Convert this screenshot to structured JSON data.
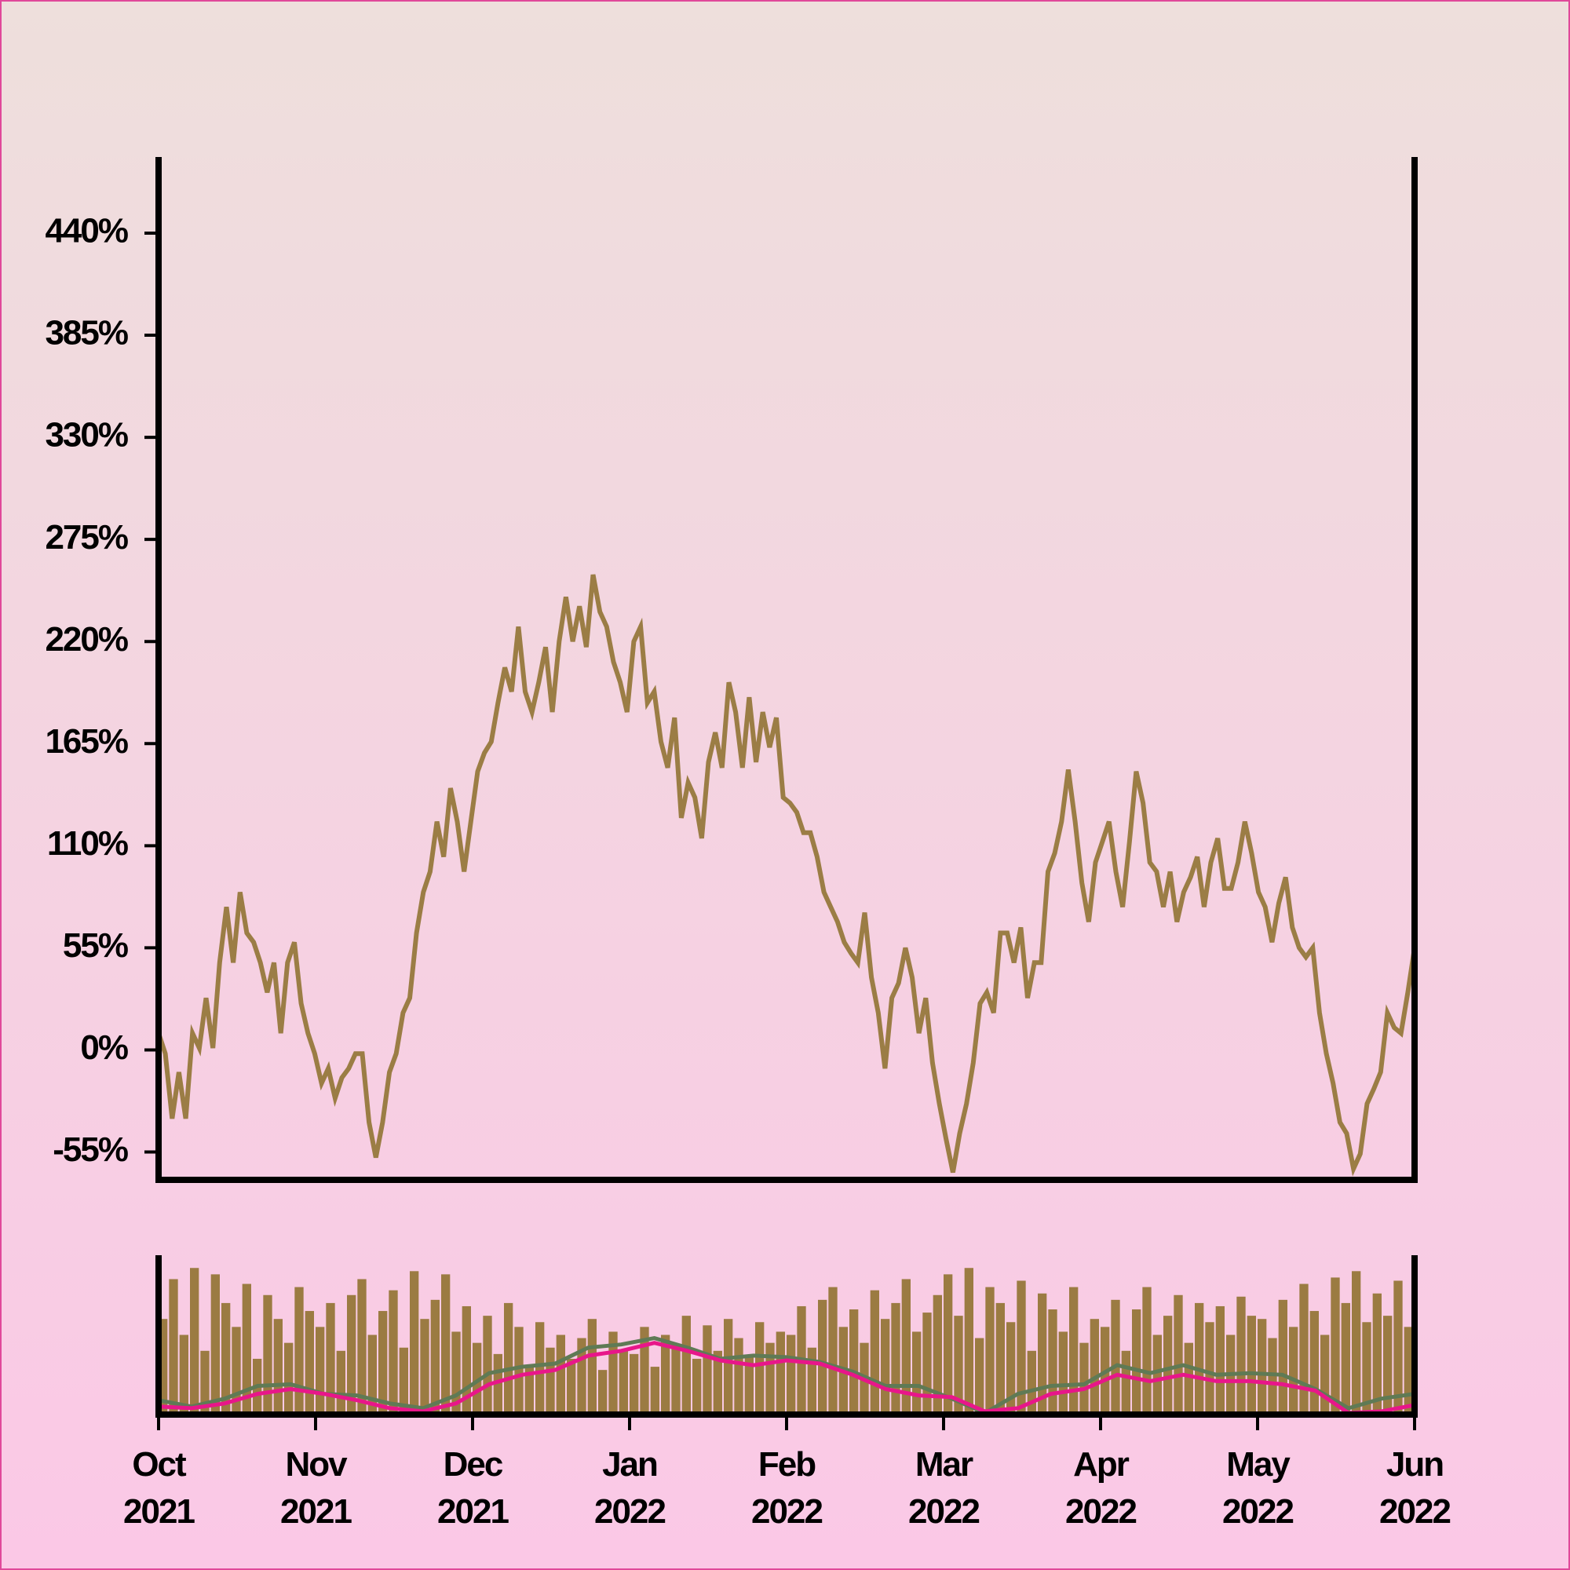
{
  "chart_data": [
    {
      "type": "line",
      "xlim": [
        "2021-10",
        "2022-06"
      ],
      "ylim": [
        -70,
        481
      ],
      "yticks": [
        {
          "value": -55,
          "label": "-55%"
        },
        {
          "value": 0,
          "label": "0%"
        },
        {
          "value": 55,
          "label": "55%"
        },
        {
          "value": 110,
          "label": "110%"
        },
        {
          "value": 165,
          "label": "165%"
        },
        {
          "value": 220,
          "label": "220%"
        },
        {
          "value": 275,
          "label": "275%"
        },
        {
          "value": 330,
          "label": "330%"
        },
        {
          "value": 385,
          "label": "385%"
        },
        {
          "value": 440,
          "label": "440%"
        }
      ],
      "series": [
        {
          "color": "#9b7d45",
          "values": [
            9,
            -2,
            -37,
            -12,
            -37,
            9,
            1,
            28,
            1,
            47,
            77,
            47,
            85,
            63,
            58,
            47,
            31,
            47,
            9,
            47,
            58,
            25,
            9,
            -2,
            -18,
            -10,
            -26,
            -15,
            -10,
            -2,
            -2,
            -39,
            -58,
            -39,
            -12,
            -2,
            20,
            28,
            63,
            85,
            96,
            123,
            104,
            141,
            123,
            96,
            123,
            150,
            160,
            166,
            187,
            206,
            193,
            228,
            193,
            182,
            198,
            217,
            182,
            220,
            244,
            220,
            239,
            217,
            256,
            236,
            228,
            209,
            198,
            182,
            220,
            228,
            187,
            193,
            166,
            152,
            179,
            125,
            144,
            136,
            114,
            155,
            171,
            152,
            198,
            182,
            152,
            190,
            155,
            182,
            163,
            179,
            136,
            133,
            128,
            117,
            117,
            104,
            85,
            77,
            69,
            58,
            52,
            47,
            74,
            39,
            20,
            -10,
            28,
            36,
            55,
            39,
            9,
            28,
            -7,
            -29,
            -48,
            -66,
            -45,
            -29,
            -7,
            25,
            31,
            20,
            63,
            63,
            47,
            66,
            28,
            47,
            47,
            96,
            106,
            123,
            151,
            123,
            90,
            69,
            101,
            112,
            123,
            96,
            77,
            112,
            150,
            133,
            101,
            96,
            77,
            96,
            69,
            85,
            93,
            104,
            77,
            101,
            114,
            87,
            87,
            101,
            123,
            106,
            85,
            77,
            58,
            79,
            93,
            66,
            55,
            50,
            55,
            20,
            -2,
            -18,
            -39,
            -45,
            -64,
            -56,
            -29,
            -21,
            -12,
            20,
            12,
            9,
            31,
            55
          ]
        }
      ]
    },
    {
      "type": "bar",
      "xlim": [
        "2021-10",
        "2022-06"
      ],
      "ylim": [
        0,
        100
      ],
      "color": "#9b7b42",
      "values": [
        60,
        85,
        50,
        92,
        40,
        88,
        70,
        55,
        82,
        35,
        75,
        60,
        45,
        80,
        65,
        55,
        70,
        40,
        75,
        85,
        50,
        65,
        78,
        42,
        90,
        60,
        72,
        88,
        52,
        68,
        45,
        62,
        38,
        70,
        55,
        30,
        58,
        42,
        50,
        35,
        48,
        60,
        28,
        52,
        40,
        38,
        55,
        30,
        50,
        44,
        62,
        35,
        56,
        40,
        60,
        48,
        36,
        58,
        45,
        52,
        50,
        68,
        42,
        72,
        80,
        55,
        66,
        45,
        78,
        60,
        70,
        85,
        52,
        64,
        75,
        88,
        62,
        92,
        48,
        80,
        70,
        58,
        84,
        40,
        76,
        66,
        52,
        80,
        45,
        60,
        55,
        72,
        40,
        66,
        80,
        50,
        62,
        75,
        45,
        70,
        58,
        68,
        50,
        74,
        62,
        60,
        48,
        72,
        55,
        82,
        65,
        50,
        86,
        70,
        90,
        58,
        76,
        62,
        84,
        55
      ],
      "series": [
        {
          "color": "#5f7a55",
          "values": [
            9,
            5,
            10,
            18,
            19,
            13,
            12,
            7,
            4,
            12,
            26,
            30,
            32,
            42,
            44,
            48,
            42,
            35,
            37,
            36,
            33,
            27,
            18,
            18,
            10,
            1,
            13,
            18,
            19,
            31,
            26,
            31,
            25,
            26,
            25,
            16,
            4,
            10,
            13
          ]
        },
        {
          "color": "#e8168a",
          "values": [
            5,
            4,
            7,
            13,
            16,
            13,
            9,
            4,
            2,
            7,
            19,
            25,
            28,
            37,
            40,
            45,
            40,
            34,
            31,
            34,
            32,
            25,
            16,
            12,
            11,
            2,
            4,
            13,
            16,
            25,
            21,
            25,
            21,
            21,
            19,
            15,
            1,
            2,
            6
          ]
        }
      ],
      "xticks": [
        {
          "value": "2021-10",
          "label": "Oct 2021"
        },
        {
          "value": "2021-11",
          "label": "Nov 2021"
        },
        {
          "value": "2021-12",
          "label": "Dec 2021"
        },
        {
          "value": "2022-01",
          "label": "Jan 2022"
        },
        {
          "value": "2022-02",
          "label": "Feb 2022"
        },
        {
          "value": "2022-03",
          "label": "Mar 2022"
        },
        {
          "value": "2022-04",
          "label": "Apr 2022"
        },
        {
          "value": "2022-05",
          "label": "May 2022"
        },
        {
          "value": "2022-06",
          "label": "Jun 2022"
        }
      ]
    }
  ]
}
